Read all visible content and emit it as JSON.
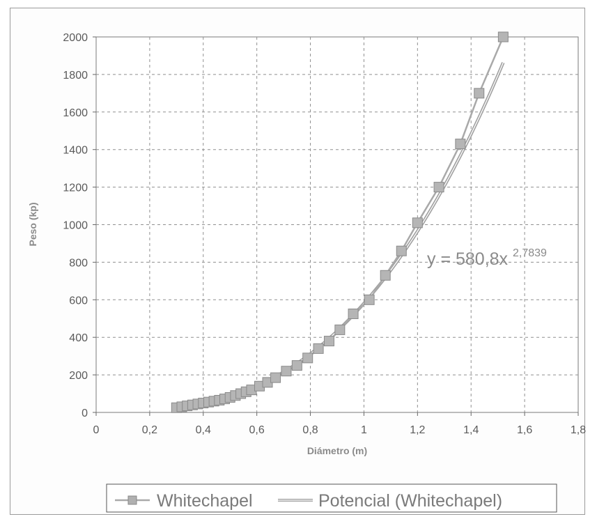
{
  "chart_data": {
    "type": "line",
    "title": "",
    "xlabel": "Diámetro (m)",
    "ylabel": "Peso (kp)",
    "xlim": [
      0,
      1.8
    ],
    "ylim": [
      0,
      2000
    ],
    "xticks": [
      "0",
      "0,2",
      "0,4",
      "0,6",
      "0,8",
      "1",
      "1,2",
      "1,4",
      "1,6",
      "1,8"
    ],
    "yticks": [
      "0",
      "200",
      "400",
      "600",
      "800",
      "1000",
      "1200",
      "1400",
      "1600",
      "1800",
      "2000"
    ],
    "grid": true,
    "legend_position": "bottom",
    "series": [
      {
        "name": "Whitechapel",
        "color": "#a9a9a9",
        "marker": "square",
        "x": [
          0.3,
          0.32,
          0.34,
          0.36,
          0.38,
          0.4,
          0.42,
          0.44,
          0.46,
          0.48,
          0.5,
          0.52,
          0.54,
          0.56,
          0.58,
          0.61,
          0.64,
          0.67,
          0.71,
          0.75,
          0.79,
          0.83,
          0.87,
          0.91,
          0.96,
          1.02,
          1.08,
          1.14,
          1.2,
          1.28,
          1.36,
          1.43,
          1.52
        ],
        "y": [
          25,
          30,
          35,
          40,
          45,
          50,
          55,
          60,
          65,
          72,
          80,
          90,
          100,
          110,
          120,
          140,
          160,
          185,
          220,
          250,
          290,
          340,
          380,
          440,
          525,
          600,
          730,
          860,
          1010,
          1200,
          1430,
          1700,
          2000
        ]
      },
      {
        "name": "Potencial (Whitechapel)",
        "color": "#a0a0a0",
        "type": "power-trendline",
        "coefficient": 580.8,
        "exponent": 2.7839,
        "x_range": [
          0.29,
          1.52
        ]
      }
    ],
    "annotations": [
      {
        "text_base": "y = 580,8x",
        "text_exp": "2,7839"
      }
    ]
  }
}
